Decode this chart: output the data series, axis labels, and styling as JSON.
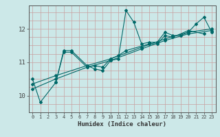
{
  "xlabel": "Humidex (Indice chaleur)",
  "ylabel": "",
  "bg_color": "#cce8e8",
  "line_color": "#006868",
  "xlim": [
    -0.5,
    23.5
  ],
  "ylim": [
    9.5,
    12.7
  ],
  "yticks": [
    10,
    11,
    12
  ],
  "xticks": [
    0,
    1,
    2,
    3,
    4,
    5,
    6,
    7,
    8,
    9,
    10,
    11,
    12,
    13,
    14,
    15,
    16,
    17,
    18,
    19,
    20,
    21,
    22,
    23
  ],
  "lines": [
    {
      "x": [
        0,
        1,
        3,
        4,
        5,
        7,
        8,
        9,
        10,
        11,
        12,
        13,
        14,
        15,
        16,
        17,
        18,
        19,
        20,
        21,
        22,
        23
      ],
      "y": [
        10.5,
        9.8,
        10.4,
        11.35,
        11.35,
        10.9,
        10.8,
        10.75,
        11.05,
        11.1,
        12.55,
        12.2,
        11.55,
        11.6,
        11.6,
        11.9,
        11.8,
        11.8,
        11.9,
        12.15,
        12.35,
        11.9
      ]
    },
    {
      "x": [
        3,
        4,
        5,
        7,
        8,
        9,
        10,
        11,
        12,
        15,
        16,
        17,
        18,
        20,
        22
      ],
      "y": [
        10.4,
        11.3,
        11.3,
        10.85,
        10.9,
        10.85,
        11.1,
        11.2,
        11.35,
        11.55,
        11.55,
        11.8,
        11.75,
        11.95,
        11.85
      ]
    },
    {
      "x": [
        0,
        3,
        7,
        10,
        14,
        17,
        20,
        23
      ],
      "y": [
        10.2,
        10.5,
        10.85,
        11.05,
        11.4,
        11.65,
        11.85,
        11.95
      ]
    },
    {
      "x": [
        0,
        3,
        7,
        10,
        14,
        17,
        20,
        23
      ],
      "y": [
        10.35,
        10.6,
        10.9,
        11.1,
        11.45,
        11.7,
        11.9,
        12.0
      ]
    }
  ],
  "grid_x_color": "#c8a0a0",
  "grid_y_color": "#c8a0a0",
  "grid_linewidth": 0.5
}
